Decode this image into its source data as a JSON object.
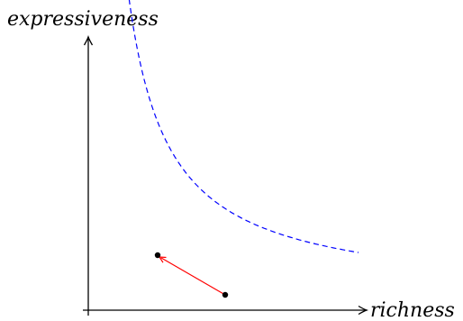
{
  "axes": {
    "y_label": "expressiveness",
    "x_label": "richness"
  },
  "colors": {
    "axis": "#000000",
    "curve": "#0000ff",
    "arrow": "#ff0000",
    "point": "#000000"
  },
  "chart_data": {
    "type": "diagram",
    "curve": {
      "kind": "hyperbola",
      "style": "dashed"
    },
    "points": [
      {
        "name": "start"
      },
      {
        "name": "end"
      }
    ],
    "arrow": {
      "from": "start",
      "to": "end"
    }
  }
}
